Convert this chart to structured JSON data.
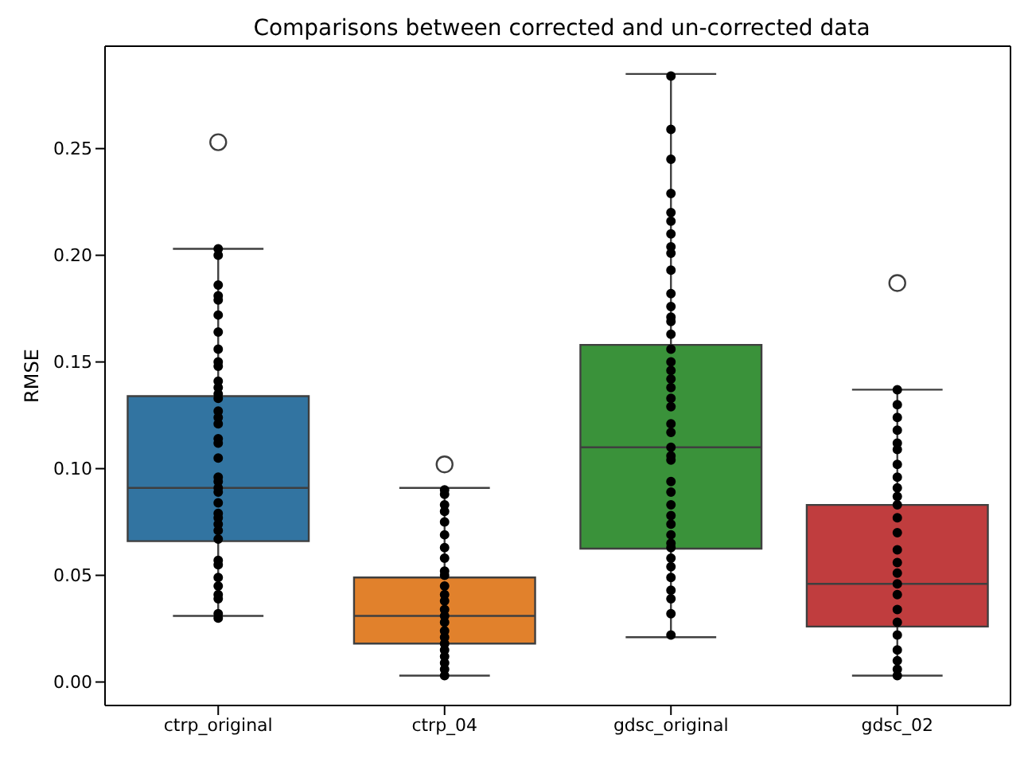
{
  "chart_data": {
    "type": "box",
    "title": "Comparisons between corrected and un-corrected data",
    "ylabel": "RMSE",
    "categories": [
      "ctrp_original",
      "ctrp_04",
      "gdsc_original",
      "gdsc_02"
    ],
    "colors": [
      "#3274a1",
      "#e1812c",
      "#3a923a",
      "#c03d3e"
    ],
    "boxes": [
      {
        "low": 0.031,
        "q1": 0.066,
        "median": 0.091,
        "q3": 0.134,
        "high": 0.203,
        "outliers": [
          0.253
        ]
      },
      {
        "low": 0.003,
        "q1": 0.018,
        "median": 0.031,
        "q3": 0.049,
        "high": 0.091,
        "outliers": [
          0.102
        ]
      },
      {
        "low": 0.021,
        "q1": 0.0625,
        "median": 0.11,
        "q3": 0.158,
        "high": 0.285
      },
      {
        "low": 0.003,
        "q1": 0.026,
        "median": 0.046,
        "q3": 0.083,
        "high": 0.137,
        "outliers": [
          0.187
        ]
      }
    ],
    "ylim": [
      -0.011,
      0.298
    ],
    "yticks": [
      {
        "value": 0,
        "label": "0.00"
      },
      {
        "value": 0.05,
        "label": "0.05"
      },
      {
        "value": 0.1,
        "label": "0.10"
      },
      {
        "value": 0.15,
        "label": "0.15"
      },
      {
        "value": 0.2,
        "label": "0.20"
      },
      {
        "value": 0.25,
        "label": "0.25"
      }
    ],
    "marker": "circle",
    "series": [
      {
        "type": "scatter",
        "color": "#000000",
        "x": [
          "ctrp_original",
          "ctrp_original",
          "ctrp_original",
          "ctrp_original",
          "ctrp_original",
          "ctrp_original",
          "ctrp_original",
          "ctrp_original",
          "ctrp_original",
          "ctrp_original",
          "ctrp_original",
          "ctrp_original",
          "ctrp_original",
          "ctrp_original",
          "ctrp_original",
          "ctrp_original",
          "ctrp_original",
          "ctrp_original",
          "ctrp_original",
          "ctrp_original",
          "ctrp_original",
          "ctrp_original",
          "ctrp_original",
          "ctrp_original",
          "ctrp_original",
          "ctrp_original",
          "ctrp_original",
          "ctrp_original",
          "ctrp_original",
          "ctrp_original",
          "ctrp_original",
          "ctrp_original",
          "ctrp_original",
          "ctrp_original",
          "ctrp_original",
          "ctrp_original",
          "ctrp_original",
          "ctrp_original",
          "ctrp_04",
          "ctrp_04",
          "ctrp_04",
          "ctrp_04",
          "ctrp_04",
          "ctrp_04",
          "ctrp_04",
          "ctrp_04",
          "ctrp_04",
          "ctrp_04",
          "ctrp_04",
          "ctrp_04",
          "ctrp_04",
          "ctrp_04",
          "ctrp_04",
          "ctrp_04",
          "ctrp_04",
          "ctrp_04",
          "ctrp_04",
          "ctrp_04",
          "ctrp_04",
          "ctrp_04",
          "ctrp_04",
          "ctrp_04",
          "gdsc_original",
          "gdsc_original",
          "gdsc_original",
          "gdsc_original",
          "gdsc_original",
          "gdsc_original",
          "gdsc_original",
          "gdsc_original",
          "gdsc_original",
          "gdsc_original",
          "gdsc_original",
          "gdsc_original",
          "gdsc_original",
          "gdsc_original",
          "gdsc_original",
          "gdsc_original",
          "gdsc_original",
          "gdsc_original",
          "gdsc_original",
          "gdsc_original",
          "gdsc_original",
          "gdsc_original",
          "gdsc_original",
          "gdsc_original",
          "gdsc_original",
          "gdsc_original",
          "gdsc_original",
          "gdsc_original",
          "gdsc_original",
          "gdsc_original",
          "gdsc_original",
          "gdsc_original",
          "gdsc_original",
          "gdsc_original",
          "gdsc_original",
          "gdsc_original",
          "gdsc_original",
          "gdsc_original",
          "gdsc_original",
          "gdsc_original",
          "gdsc_original",
          "gdsc_original",
          "gdsc_02",
          "gdsc_02",
          "gdsc_02",
          "gdsc_02",
          "gdsc_02",
          "gdsc_02",
          "gdsc_02",
          "gdsc_02",
          "gdsc_02",
          "gdsc_02",
          "gdsc_02",
          "gdsc_02",
          "gdsc_02",
          "gdsc_02",
          "gdsc_02",
          "gdsc_02",
          "gdsc_02",
          "gdsc_02",
          "gdsc_02",
          "gdsc_02",
          "gdsc_02",
          "gdsc_02",
          "gdsc_02",
          "gdsc_02",
          "gdsc_02"
        ],
        "values": [
          0.203,
          0.2,
          0.186,
          0.181,
          0.179,
          0.172,
          0.164,
          0.156,
          0.15,
          0.148,
          0.141,
          0.138,
          0.135,
          0.133,
          0.127,
          0.124,
          0.121,
          0.114,
          0.112,
          0.105,
          0.096,
          0.094,
          0.091,
          0.089,
          0.084,
          0.079,
          0.077,
          0.074,
          0.071,
          0.067,
          0.057,
          0.055,
          0.049,
          0.045,
          0.041,
          0.039,
          0.032,
          0.03,
          0.09,
          0.088,
          0.083,
          0.08,
          0.075,
          0.069,
          0.063,
          0.058,
          0.052,
          0.05,
          0.045,
          0.041,
          0.038,
          0.034,
          0.031,
          0.028,
          0.024,
          0.021,
          0.018,
          0.015,
          0.012,
          0.009,
          0.006,
          0.003,
          0.284,
          0.259,
          0.245,
          0.229,
          0.22,
          0.216,
          0.21,
          0.204,
          0.201,
          0.193,
          0.182,
          0.176,
          0.171,
          0.169,
          0.163,
          0.156,
          0.15,
          0.146,
          0.142,
          0.138,
          0.133,
          0.129,
          0.121,
          0.117,
          0.11,
          0.106,
          0.104,
          0.094,
          0.089,
          0.083,
          0.078,
          0.074,
          0.069,
          0.065,
          0.063,
          0.058,
          0.054,
          0.049,
          0.043,
          0.039,
          0.032,
          0.022,
          0.137,
          0.13,
          0.124,
          0.118,
          0.112,
          0.109,
          0.102,
          0.096,
          0.091,
          0.087,
          0.083,
          0.077,
          0.07,
          0.062,
          0.056,
          0.051,
          0.046,
          0.041,
          0.034,
          0.028,
          0.022,
          0.015,
          0.01,
          0.006,
          0.003
        ]
      }
    ]
  }
}
